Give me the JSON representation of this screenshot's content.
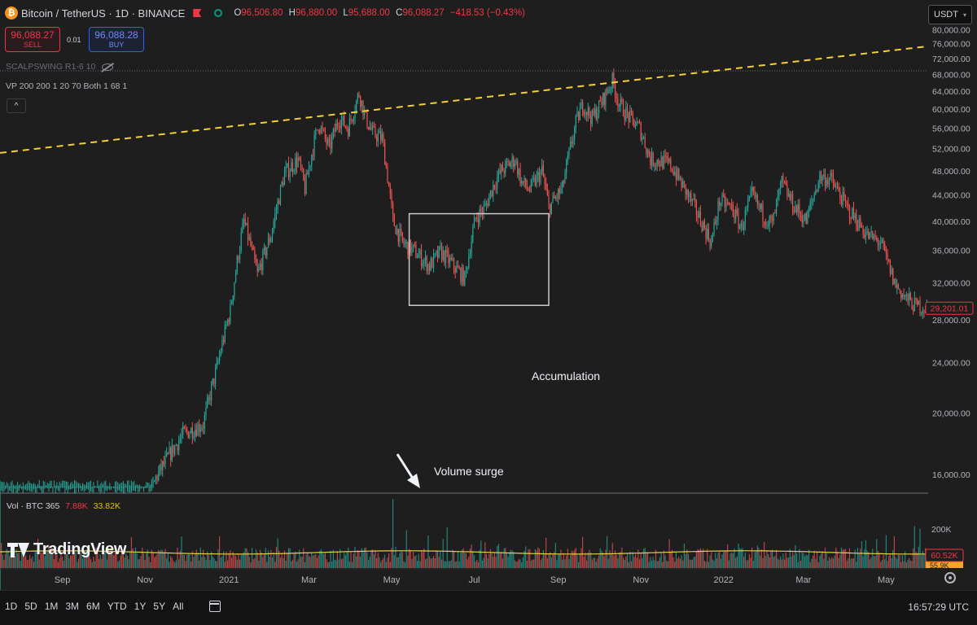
{
  "header": {
    "symbol": "Bitcoin / TetherUS · 1D · BINANCE",
    "o_label": "O",
    "o_value": "96,506.80",
    "h_label": "H",
    "h_value": "96,880.00",
    "l_label": "L",
    "l_value": "95,688.00",
    "c_label": "C",
    "c_value": "96,088.27",
    "change": "−418.53 (−0.43%)",
    "btc_glyph": "₿"
  },
  "trade": {
    "sell_price": "96,088.27",
    "sell_label": "SELL",
    "spread": "0.01",
    "buy_price": "96,088.28",
    "buy_label": "BUY"
  },
  "indicators": {
    "scalpswing": "SCALPSWING R1-6 10",
    "vp": "VP 200 200 1 20 70 Both 1 68 1",
    "collapse_glyph": "^"
  },
  "currency": {
    "selected": "USDT",
    "caret": "▾"
  },
  "volume_legend": {
    "label": "Vol · BTC 365",
    "value1": "7.88K",
    "value2": "33.82K"
  },
  "branding": {
    "name": "TradingView"
  },
  "annotations": {
    "accumulation": "Accumulation",
    "volume_surge": "Volume surge"
  },
  "bottom": {
    "ranges": [
      "1D",
      "5D",
      "1M",
      "3M",
      "6M",
      "YTD",
      "1Y",
      "5Y",
      "All"
    ],
    "clock": "16:57:29 UTC"
  },
  "colors": {
    "up": "#26a69a",
    "down": "#ef5350",
    "trendline": "#f5d033",
    "background": "#1e1e1e",
    "price_badge": "#f23645",
    "volume_ma": "#e6d04a"
  },
  "chart_data": {
    "type": "candlestick",
    "price_axis": {
      "ticks": [
        "16,000.00",
        "20,000.00",
        "24,000.00",
        "28,000.00",
        "32,000.00",
        "36,000.00",
        "40,000.00",
        "44,000.00",
        "48,000.00",
        "52,000.00",
        "56,000.00",
        "60,000.00",
        "64,000.00",
        "68,000.00",
        "72,000.00",
        "76,000.00",
        "80,000.00"
      ],
      "ylim": [
        15000,
        81500
      ],
      "current_price_label": "29,201.01",
      "current_price": 29201.01
    },
    "time_axis": {
      "labels": [
        "Sep",
        "Nov",
        "2021",
        "Mar",
        "May",
        "Jul",
        "Sep",
        "Nov",
        "2022",
        "Mar",
        "May"
      ],
      "label_days": [
        61,
        122,
        184,
        243,
        304,
        365,
        427,
        488,
        549,
        608,
        669
      ]
    },
    "time_range_days": [
      15,
      700
    ],
    "close_path": [
      [
        15,
        10600
      ],
      [
        40,
        11500
      ],
      [
        70,
        11000
      ],
      [
        100,
        13000
      ],
      [
        120,
        13500
      ],
      [
        130,
        15800
      ],
      [
        150,
        18500
      ],
      [
        165,
        19200
      ],
      [
        175,
        23500
      ],
      [
        185,
        29000
      ],
      [
        195,
        40000
      ],
      [
        205,
        33000
      ],
      [
        215,
        38000
      ],
      [
        225,
        47500
      ],
      [
        235,
        50000
      ],
      [
        240,
        45000
      ],
      [
        250,
        57000
      ],
      [
        258,
        52000
      ],
      [
        265,
        58000
      ],
      [
        272,
        56000
      ],
      [
        280,
        63500
      ],
      [
        285,
        58000
      ],
      [
        290,
        55000
      ],
      [
        297,
        54000
      ],
      [
        305,
        40000
      ],
      [
        312,
        37000
      ],
      [
        320,
        36000
      ],
      [
        332,
        34000
      ],
      [
        340,
        35800
      ],
      [
        350,
        34000
      ],
      [
        358,
        32500
      ],
      [
        366,
        40500
      ],
      [
        373,
        42000
      ],
      [
        380,
        46000
      ],
      [
        385,
        48000
      ],
      [
        395,
        50000
      ],
      [
        400,
        46000
      ],
      [
        406,
        44800
      ],
      [
        415,
        48000
      ],
      [
        420,
        42000
      ],
      [
        430,
        45000
      ],
      [
        440,
        57000
      ],
      [
        445,
        61000
      ],
      [
        452,
        58000
      ],
      [
        460,
        62000
      ],
      [
        467,
        66500
      ],
      [
        472,
        61000
      ],
      [
        480,
        58000
      ],
      [
        487,
        56000
      ],
      [
        495,
        50000
      ],
      [
        505,
        49500
      ],
      [
        510,
        49000
      ],
      [
        520,
        45000
      ],
      [
        530,
        41000
      ],
      [
        540,
        37000
      ],
      [
        546,
        43000
      ],
      [
        555,
        42000
      ],
      [
        562,
        39000
      ],
      [
        570,
        44000
      ],
      [
        578,
        41000
      ],
      [
        585,
        39500
      ],
      [
        592,
        46000
      ],
      [
        600,
        42500
      ],
      [
        610,
        40000
      ],
      [
        620,
        47000
      ],
      [
        628,
        46500
      ],
      [
        640,
        42000
      ],
      [
        655,
        38000
      ],
      [
        665,
        37000
      ],
      [
        675,
        32000
      ],
      [
        682,
        30500
      ],
      [
        690,
        29500
      ],
      [
        700,
        29201
      ]
    ],
    "trendline": {
      "start": [
        15,
        51200
      ],
      "end": [
        700,
        75300
      ],
      "style": "dashed"
    },
    "resistance_level": 68900,
    "accumulation_box": {
      "x_range_days": [
        317,
        420
      ],
      "y_range": [
        29500,
        41100
      ]
    },
    "volume": {
      "ma_level": 60520,
      "axis_label": "200K",
      "axis_value": 200000,
      "current_label": "60.52K",
      "hidden_label": "55.9K",
      "ylim": [
        0,
        270000
      ],
      "spikes": [
        [
          305,
          255000
        ],
        [
          315,
          140000
        ],
        [
          331,
          120000
        ],
        [
          345,
          150000
        ],
        [
          690,
          155000
        ],
        [
          694,
          145000
        ],
        [
          560,
          90000
        ],
        [
          220,
          110000
        ],
        [
          120,
          75000
        ]
      ]
    }
  }
}
